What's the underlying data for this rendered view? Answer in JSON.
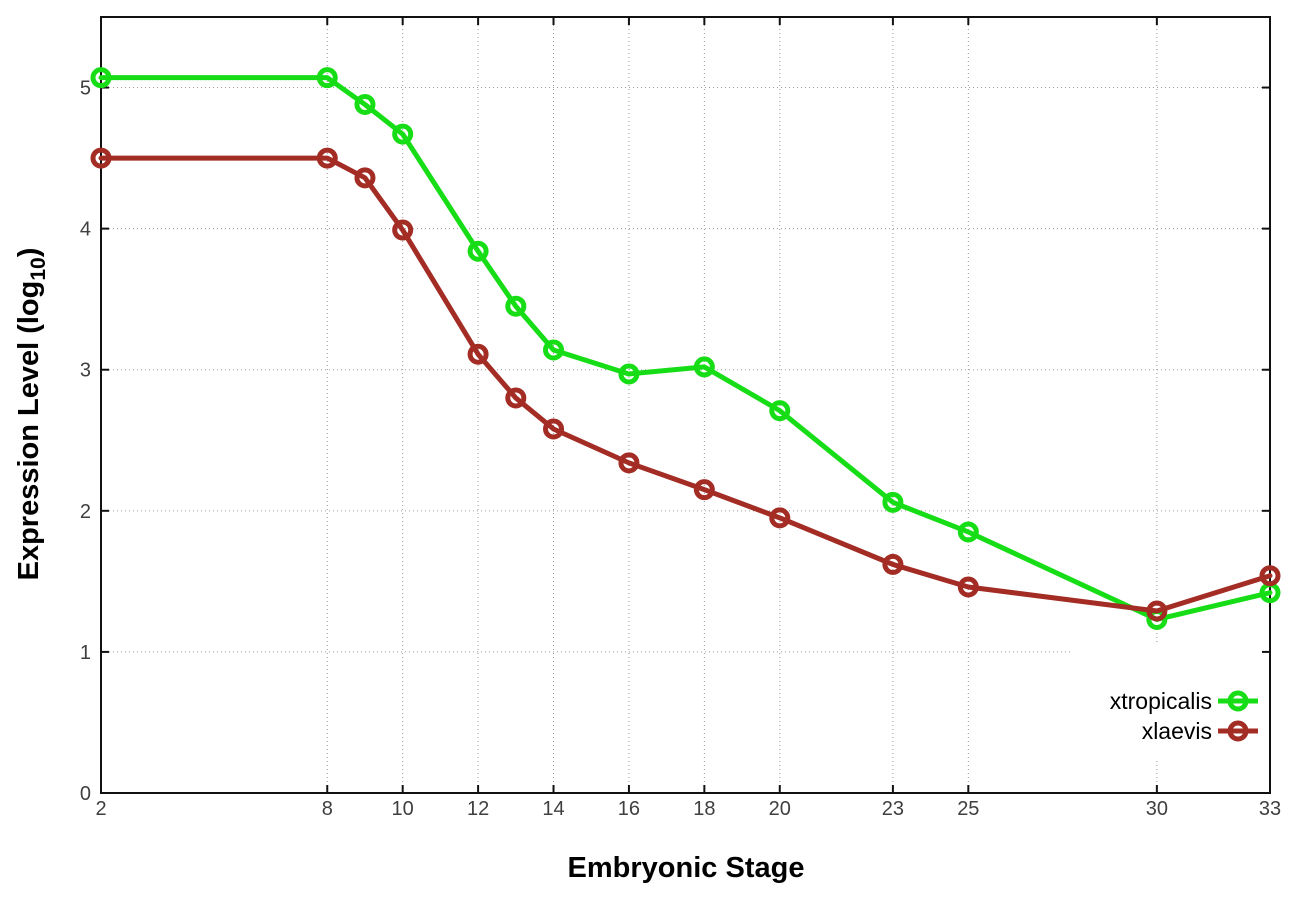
{
  "chart": {
    "xlabel": "Embryonic Stage",
    "ylabel_main": "Expression Level (log",
    "ylabel_sub": "10",
    "ylabel_close": ")"
  },
  "legend": {
    "items": [
      {
        "label": "xtropicalis",
        "color": "#17dd17"
      },
      {
        "label": "xlaevis",
        "color": "#a32c24"
      }
    ]
  },
  "chart_data": {
    "type": "line",
    "title": "",
    "xlabel": "Embryonic Stage",
    "ylabel": "Expression Level (log10)",
    "x": [
      2,
      8,
      9,
      10,
      12,
      13,
      14,
      16,
      18,
      20,
      23,
      25,
      30,
      33
    ],
    "x_tick_labels": [
      2,
      8,
      10,
      12,
      14,
      16,
      18,
      20,
      23,
      25,
      30,
      33
    ],
    "y_ticks": [
      0,
      1,
      2,
      3,
      4,
      5
    ],
    "xlim": [
      2,
      33
    ],
    "ylim": [
      0,
      5.5
    ],
    "grid": true,
    "legend_position": "bottom-right",
    "series": [
      {
        "name": "xtropicalis",
        "color": "#17dd17",
        "values": [
          5.07,
          5.07,
          4.88,
          4.67,
          3.84,
          3.45,
          3.14,
          2.97,
          3.02,
          2.71,
          2.06,
          1.85,
          1.23,
          1.42
        ]
      },
      {
        "name": "xlaevis",
        "color": "#a32c24",
        "values": [
          4.5,
          4.5,
          4.36,
          3.99,
          3.11,
          2.8,
          2.58,
          2.34,
          2.15,
          1.95,
          1.62,
          1.46,
          1.29,
          1.54
        ]
      }
    ]
  }
}
